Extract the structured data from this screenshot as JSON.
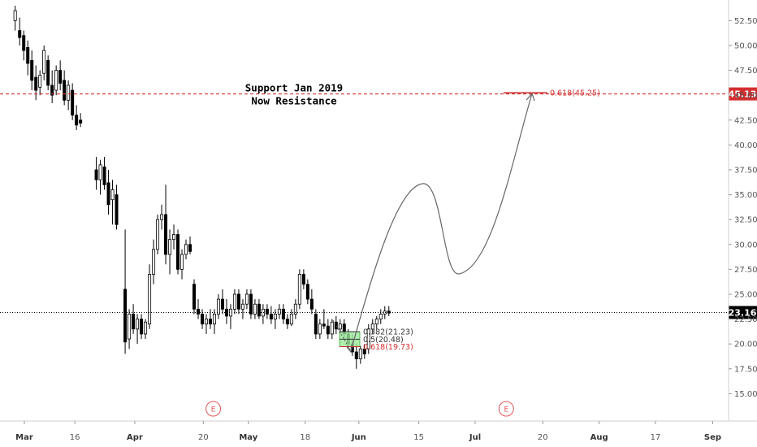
{
  "chart_data": {
    "type": "candlestick",
    "y_axis": {
      "range": [
        12.5,
        54
      ],
      "ticks": [
        "52.50",
        "50.00",
        "47.50",
        "45.00",
        "42.50",
        "40.00",
        "37.50",
        "35.00",
        "32.50",
        "30.00",
        "27.50",
        "25.00",
        "22.50",
        "20.00",
        "17.50",
        "15.00"
      ]
    },
    "x_axis": {
      "labels": [
        {
          "text": "Mar",
          "pos": 0.0,
          "month": true
        },
        {
          "text": "16",
          "pos": 0.112,
          "month": false
        },
        {
          "text": "Apr",
          "pos": 0.245,
          "month": true
        },
        {
          "text": "20",
          "pos": 0.397,
          "month": false
        },
        {
          "text": "May",
          "pos": 0.497,
          "month": true
        },
        {
          "text": "18",
          "pos": 0.623,
          "month": false
        },
        {
          "text": "Jun",
          "pos": 0.742,
          "month": true
        },
        {
          "text": "15",
          "pos": 0.875,
          "month": false
        },
        {
          "text": "Jul",
          "pos": 1.0,
          "month": true
        },
        {
          "text": "20",
          "pos": 1.15,
          "month": false
        },
        {
          "text": "Aug",
          "pos": 1.275,
          "month": true
        },
        {
          "text": "17",
          "pos": 1.4,
          "month": false
        },
        {
          "text": "Sep",
          "pos": 1.527,
          "month": true
        }
      ]
    },
    "resistance": {
      "price": 45.13,
      "label": "45.13",
      "color": "#d32f2f"
    },
    "last_price": {
      "price": 23.16,
      "label": "23.16"
    },
    "annotation": {
      "lines": [
        "Support Jan 2019",
        "Now Resistance"
      ]
    },
    "fib_target": {
      "label": "0.618(45.25)",
      "price": 45.25
    },
    "fib_retracement": [
      {
        "label": "0.382(21.23)",
        "price": 21.23,
        "color": "#333333"
      },
      {
        "label": "0.5(20.48)",
        "price": 20.48,
        "color": "#333333"
      },
      {
        "label": "0.618(19.73)",
        "price": 19.73,
        "color": "#d32f2f"
      }
    ],
    "earnings_markers": [
      {
        "label": "E",
        "pos": 0.41
      },
      {
        "label": "E",
        "pos": 1.06
      }
    ],
    "candles": [
      [
        0.003,
        52.5,
        54.0,
        51.5,
        53.5
      ],
      [
        0.013,
        51.5,
        52.8,
        50.0,
        50.8
      ],
      [
        0.022,
        51.0,
        51.5,
        48.5,
        49.5
      ],
      [
        0.031,
        49.8,
        50.5,
        47.0,
        48.2
      ],
      [
        0.04,
        48.5,
        49.5,
        45.5,
        46.5
      ],
      [
        0.049,
        46.8,
        48.0,
        44.5,
        45.5
      ],
      [
        0.058,
        45.8,
        47.5,
        45.0,
        47.0
      ],
      [
        0.067,
        47.2,
        50.0,
        46.5,
        49.5
      ],
      [
        0.076,
        48.5,
        49.0,
        45.5,
        46.0
      ],
      [
        0.085,
        46.0,
        47.5,
        44.2,
        45.0
      ],
      [
        0.094,
        45.5,
        48.0,
        45.0,
        47.5
      ],
      [
        0.103,
        47.5,
        48.5,
        45.5,
        46.2
      ],
      [
        0.112,
        46.5,
        47.5,
        44.0,
        44.5
      ],
      [
        0.121,
        44.5,
        46.5,
        43.5,
        46.0
      ],
      [
        0.13,
        45.5,
        46.2,
        42.5,
        43.0
      ],
      [
        0.139,
        43.0,
        44.0,
        41.5,
        42.0
      ],
      [
        0.148,
        42.5,
        43.2,
        41.8,
        42.2
      ],
      [
        0.183,
        37.5,
        38.8,
        35.5,
        36.5
      ],
      [
        0.192,
        36.5,
        38.5,
        35.0,
        38.0
      ],
      [
        0.201,
        37.8,
        38.8,
        35.5,
        36.0
      ],
      [
        0.21,
        36.2,
        37.5,
        33.0,
        34.0
      ],
      [
        0.219,
        34.5,
        36.5,
        32.0,
        35.5
      ],
      [
        0.228,
        35.0,
        36.0,
        31.5,
        32.0
      ],
      [
        0.247,
        25.5,
        31.5,
        19.0,
        20.2
      ],
      [
        0.256,
        20.5,
        23.5,
        19.5,
        23.0
      ],
      [
        0.265,
        23.0,
        24.0,
        21.0,
        21.5
      ],
      [
        0.274,
        21.5,
        23.0,
        20.0,
        22.5
      ],
      [
        0.283,
        22.5,
        23.0,
        20.5,
        21.0
      ],
      [
        0.292,
        21.0,
        22.5,
        20.5,
        22.2
      ],
      [
        0.301,
        22.0,
        28.0,
        21.5,
        27.0
      ],
      [
        0.31,
        27.0,
        30.5,
        26.0,
        29.5
      ],
      [
        0.319,
        29.5,
        33.0,
        29.0,
        32.5
      ],
      [
        0.328,
        32.5,
        34.0,
        31.5,
        33.0
      ],
      [
        0.337,
        33.0,
        36.0,
        28.0,
        29.0
      ],
      [
        0.346,
        29.0,
        31.5,
        27.0,
        30.5
      ],
      [
        0.355,
        30.5,
        32.0,
        29.5,
        31.0
      ],
      [
        0.364,
        31.0,
        31.5,
        27.0,
        27.5
      ],
      [
        0.373,
        27.5,
        29.5,
        26.5,
        29.0
      ],
      [
        0.382,
        29.0,
        30.5,
        28.5,
        30.0
      ],
      [
        0.391,
        30.0,
        30.8,
        29.0,
        29.3
      ],
      [
        0.4,
        26.0,
        26.5,
        23.0,
        23.5
      ],
      [
        0.409,
        23.5,
        24.5,
        22.5,
        23.0
      ],
      [
        0.418,
        23.0,
        23.5,
        21.5,
        22.0
      ],
      [
        0.427,
        22.0,
        23.0,
        21.0,
        22.5
      ],
      [
        0.436,
        22.5,
        23.5,
        21.5,
        22.0
      ],
      [
        0.445,
        22.0,
        23.5,
        21.0,
        23.0
      ],
      [
        0.454,
        23.0,
        25.0,
        22.5,
        24.5
      ],
      [
        0.463,
        24.5,
        25.5,
        23.0,
        23.5
      ],
      [
        0.472,
        23.5,
        24.5,
        22.0,
        22.8
      ],
      [
        0.481,
        22.8,
        24.0,
        21.5,
        23.5
      ],
      [
        0.49,
        23.5,
        25.5,
        23.0,
        25.0
      ],
      [
        0.499,
        25.0,
        25.5,
        23.0,
        23.5
      ],
      [
        0.508,
        23.5,
        24.5,
        22.5,
        24.0
      ],
      [
        0.517,
        24.0,
        25.5,
        23.5,
        25.0
      ],
      [
        0.526,
        25.0,
        25.5,
        22.5,
        23.0
      ],
      [
        0.535,
        23.0,
        24.5,
        22.5,
        24.0
      ],
      [
        0.544,
        24.0,
        24.5,
        22.5,
        22.8
      ],
      [
        0.553,
        22.8,
        24.0,
        22.0,
        23.5
      ],
      [
        0.562,
        23.5,
        24.0,
        22.5,
        23.0
      ],
      [
        0.571,
        23.0,
        23.8,
        22.0,
        22.5
      ],
      [
        0.58,
        22.5,
        23.5,
        21.5,
        23.0
      ],
      [
        0.589,
        23.0,
        24.0,
        22.5,
        23.5
      ],
      [
        0.598,
        23.5,
        24.0,
        22.0,
        22.5
      ],
      [
        0.607,
        22.5,
        23.0,
        21.5,
        22.0
      ],
      [
        0.616,
        22.0,
        23.5,
        21.8,
        23.0
      ],
      [
        0.625,
        23.0,
        24.5,
        22.5,
        24.0
      ],
      [
        0.634,
        24.0,
        27.5,
        23.5,
        27.0
      ],
      [
        0.643,
        27.0,
        27.5,
        25.5,
        26.0
      ],
      [
        0.652,
        26.0,
        26.5,
        24.0,
        24.5
      ],
      [
        0.661,
        24.5,
        25.5,
        23.0,
        23.5
      ],
      [
        0.67,
        23.0,
        23.5,
        20.5,
        21.0
      ],
      [
        0.679,
        21.0,
        22.5,
        20.5,
        22.0
      ],
      [
        0.688,
        22.0,
        23.5,
        21.5,
        21.8
      ],
      [
        0.697,
        21.8,
        22.5,
        20.5,
        21.0
      ],
      [
        0.706,
        21.0,
        22.5,
        20.5,
        22.2
      ],
      [
        0.715,
        22.2,
        22.8,
        21.0,
        21.5
      ],
      [
        0.724,
        21.5,
        22.5,
        21.0,
        22.0
      ],
      [
        0.733,
        22.0,
        22.5,
        20.5,
        21.0
      ],
      [
        0.742,
        21.0,
        21.5,
        19.5,
        20.0
      ],
      [
        0.751,
        20.0,
        21.0,
        18.8,
        19.2
      ],
      [
        0.76,
        19.2,
        20.0,
        17.5,
        18.5
      ],
      [
        0.769,
        18.5,
        19.8,
        18.0,
        19.5
      ],
      [
        0.778,
        19.5,
        20.0,
        18.5,
        19.0
      ],
      [
        0.787,
        19.5,
        22.0,
        19.0,
        21.5
      ],
      [
        0.796,
        21.5,
        22.5,
        21.0,
        22.0
      ],
      [
        0.805,
        22.0,
        22.8,
        21.5,
        22.5
      ],
      [
        0.814,
        22.5,
        23.5,
        22.0,
        23.0
      ],
      [
        0.823,
        23.0,
        23.8,
        22.5,
        23.3
      ],
      [
        0.832,
        23.3,
        23.8,
        22.8,
        23.1
      ]
    ]
  }
}
